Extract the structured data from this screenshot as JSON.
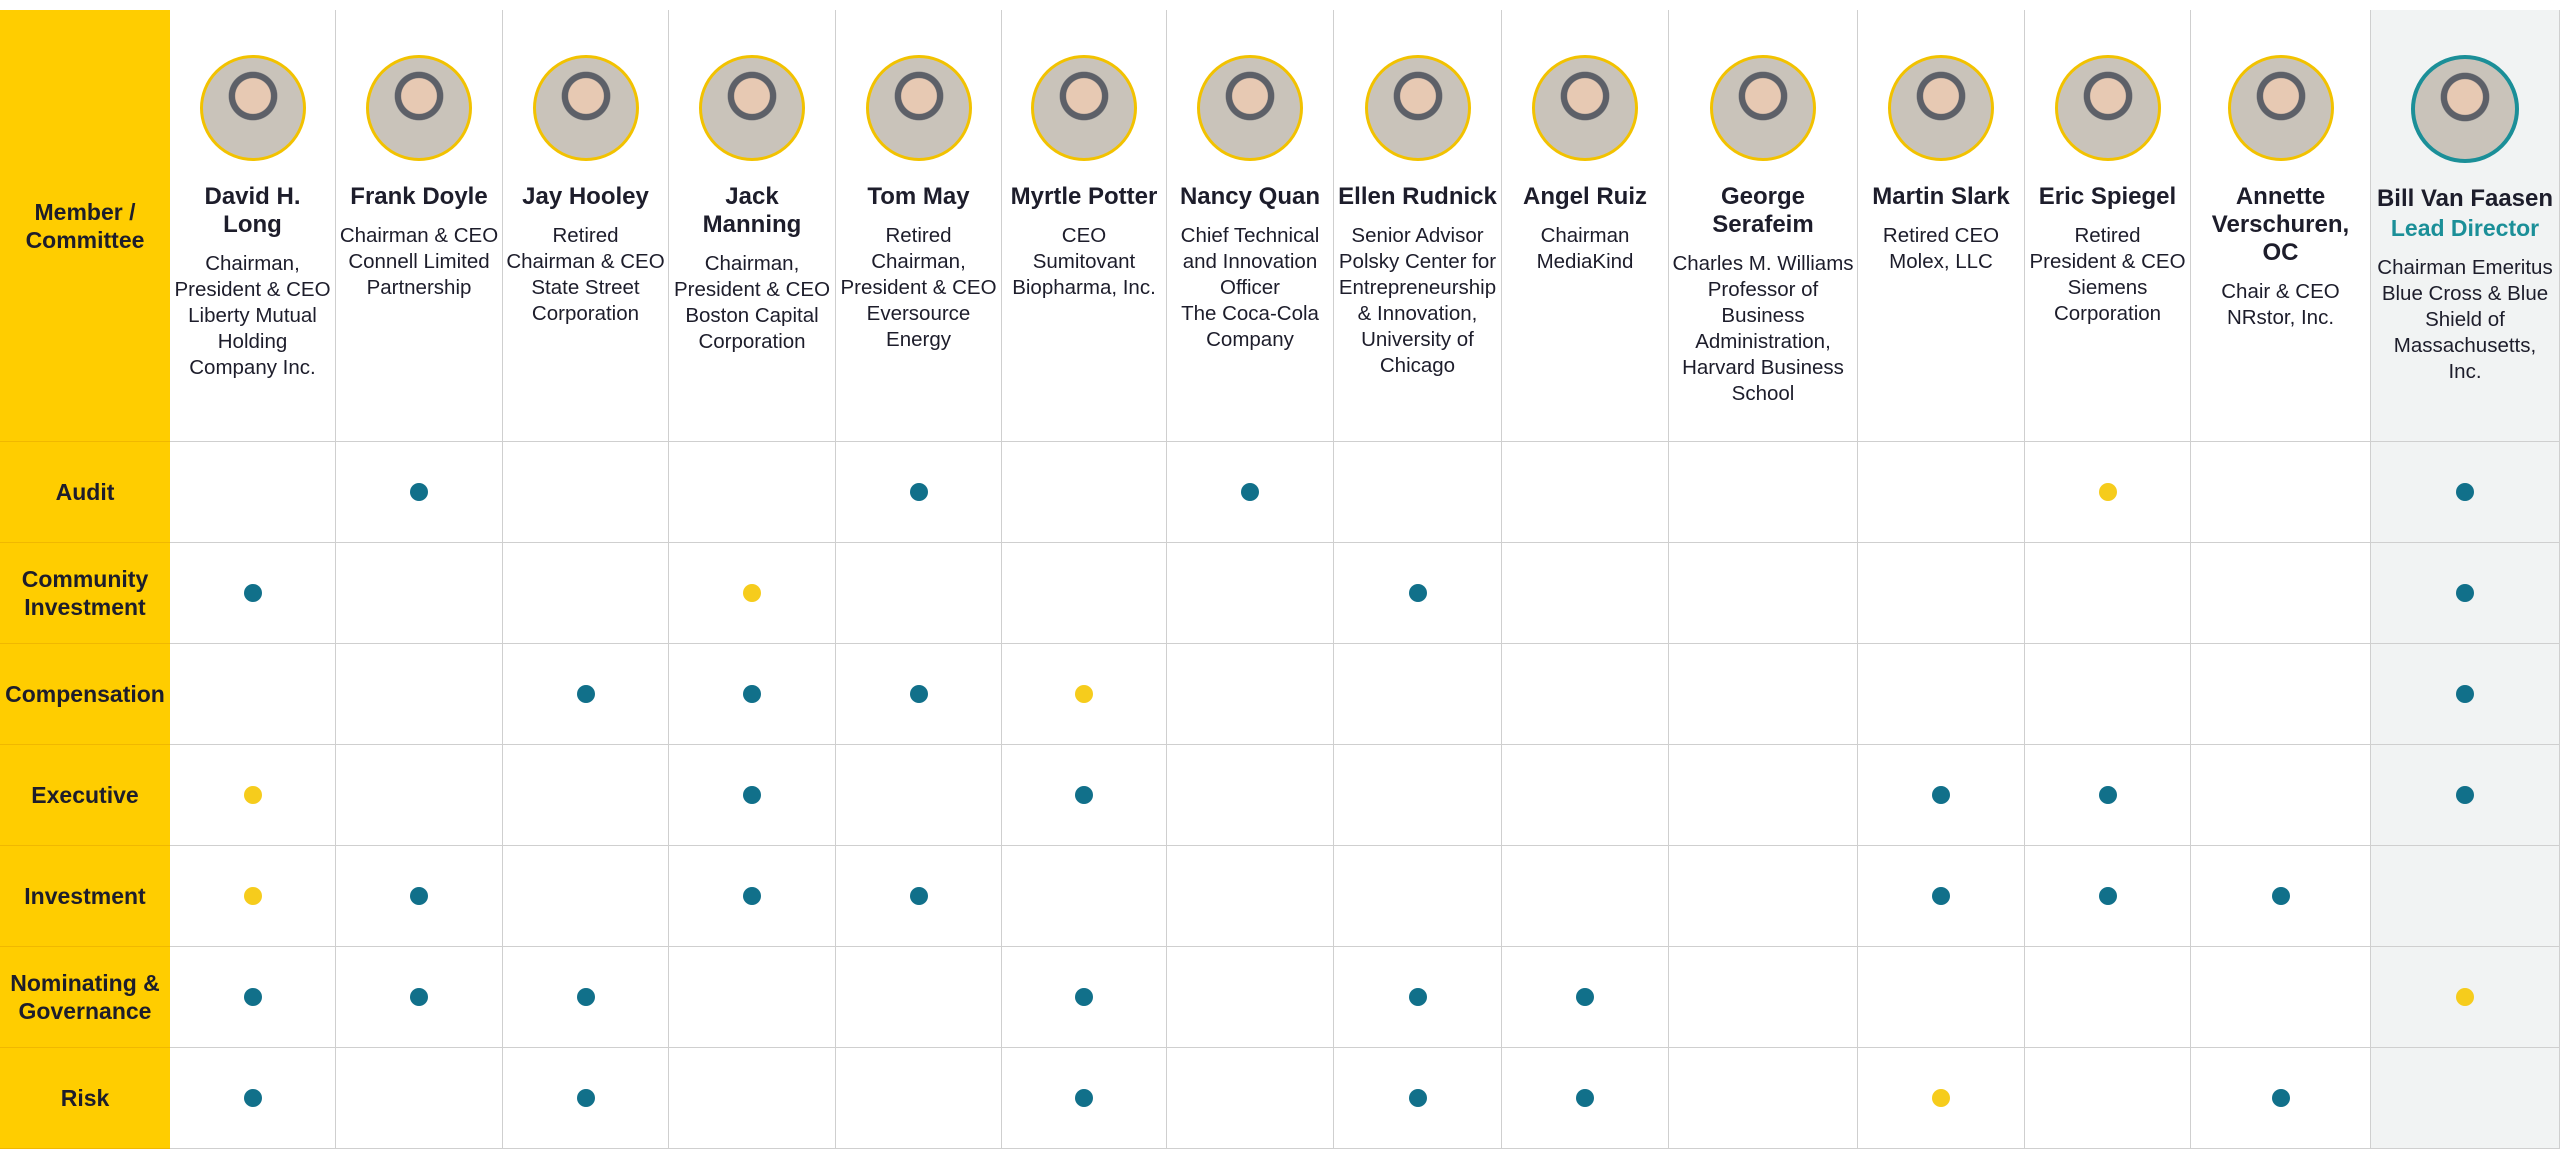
{
  "header": {
    "corner": [
      "Member /",
      "Committee"
    ]
  },
  "members": [
    {
      "name": "David H. Long",
      "title": [
        "Chairman,",
        "President & CEO",
        "Liberty Mutual",
        "Holding",
        "Company Inc."
      ]
    },
    {
      "name": "Frank Doyle",
      "title": [
        "Chairman & CEO",
        "Connell Limited",
        "Partnership"
      ]
    },
    {
      "name": "Jay Hooley",
      "title": [
        "Retired",
        "Chairman & CEO",
        "State Street",
        "Corporation"
      ]
    },
    {
      "name": "Jack Manning",
      "title": [
        "Chairman,",
        "President & CEO",
        "Boston Capital",
        "Corporation"
      ]
    },
    {
      "name": "Tom May",
      "title": [
        "Retired",
        "Chairman,",
        "President & CEO",
        "Eversource",
        "Energy"
      ]
    },
    {
      "name": "Myrtle Potter",
      "title": [
        "CEO",
        "Sumitovant",
        "Biopharma, Inc."
      ]
    },
    {
      "name": "Nancy Quan",
      "title": [
        "Chief Technical",
        "and Innovation",
        "Officer",
        "The Coca-Cola",
        "Company"
      ]
    },
    {
      "name": "Ellen Rudnick",
      "title": [
        "Senior Advisor",
        "Polsky Center for",
        "Entrepreneurship",
        "& Innovation,",
        "University of",
        "Chicago"
      ]
    },
    {
      "name": "Angel Ruiz",
      "title": [
        "Chairman",
        "MediaKind"
      ]
    },
    {
      "name": "George Serafeim",
      "title": [
        "Charles M. Williams",
        "Professor of",
        "Business",
        "Administration,",
        "Harvard Business",
        "School"
      ]
    },
    {
      "name": "Martin Slark",
      "title": [
        "Retired CEO",
        "Molex, LLC"
      ]
    },
    {
      "name": "Eric Spiegel",
      "title": [
        "Retired",
        "President & CEO",
        "Siemens",
        "Corporation"
      ]
    },
    {
      "name": "Annette Verschuren, OC",
      "title": [
        "Chair & CEO",
        "NRstor, Inc."
      ]
    },
    {
      "name": "Bill Van Faasen",
      "role": "Lead Director",
      "title": [
        "Chairman Emeritus",
        "Blue Cross & Blue",
        "Shield of",
        "Massachusetts,",
        "Inc."
      ]
    }
  ],
  "committees": [
    {
      "name": [
        "Audit"
      ],
      "cells": [
        null,
        "member",
        null,
        null,
        "member",
        null,
        "member",
        null,
        null,
        null,
        null,
        "chair",
        null,
        "member"
      ]
    },
    {
      "name": [
        "Community",
        "Investment"
      ],
      "cells": [
        "member",
        null,
        null,
        "chair",
        null,
        null,
        null,
        "member",
        null,
        null,
        null,
        null,
        null,
        "member"
      ]
    },
    {
      "name": [
        "Compensation"
      ],
      "cells": [
        null,
        null,
        "member",
        "member",
        "member",
        "chair",
        null,
        null,
        null,
        null,
        null,
        null,
        null,
        "member"
      ]
    },
    {
      "name": [
        "Executive"
      ],
      "cells": [
        "chair",
        null,
        null,
        "member",
        null,
        "member",
        null,
        null,
        null,
        null,
        "member",
        "member",
        null,
        "member"
      ]
    },
    {
      "name": [
        "Investment"
      ],
      "cells": [
        "chair",
        "member",
        null,
        "member",
        "member",
        null,
        null,
        null,
        null,
        null,
        "member",
        "member",
        "member",
        null
      ]
    },
    {
      "name": [
        "Nominating &",
        "Governance"
      ],
      "cells": [
        "member",
        "member",
        "member",
        null,
        null,
        "member",
        null,
        "member",
        "member",
        null,
        null,
        null,
        null,
        "chair"
      ]
    },
    {
      "name": [
        "Risk"
      ],
      "cells": [
        "member",
        null,
        "member",
        null,
        null,
        "member",
        null,
        "member",
        "member",
        null,
        "chair",
        null,
        "member",
        null
      ]
    }
  ]
}
